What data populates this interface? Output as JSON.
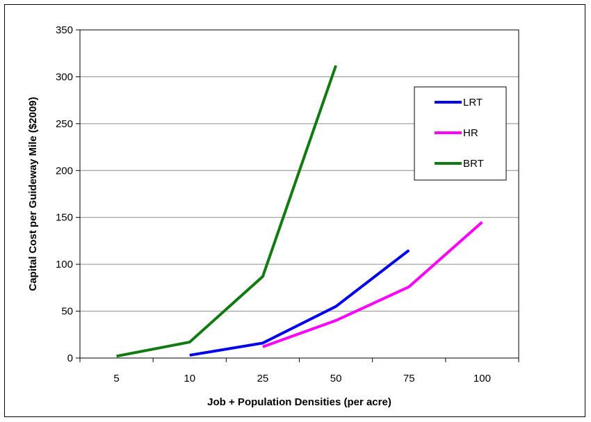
{
  "chart_data": {
    "type": "line",
    "title": "",
    "xlabel": "Job + Population Densities (per acre)",
    "ylabel": "Capital Cost per Guideway Mile ($2009)",
    "categories": [
      "5",
      "10",
      "25",
      "50",
      "75",
      "100"
    ],
    "ylim": [
      0,
      350
    ],
    "yticks": [
      0,
      50,
      100,
      150,
      200,
      250,
      300,
      350
    ],
    "grid": true,
    "legend_position": "top-right",
    "series": [
      {
        "name": "LRT",
        "color": "#0000ee",
        "x": [
          "10",
          "25",
          "50",
          "75"
        ],
        "values": [
          3,
          16,
          55,
          115
        ]
      },
      {
        "name": "HR",
        "color": "#ff00ff",
        "x": [
          "25",
          "50",
          "75",
          "100"
        ],
        "values": [
          12,
          40,
          76,
          145
        ]
      },
      {
        "name": "BRT",
        "color": "#117a11",
        "x": [
          "5",
          "10",
          "25",
          "50"
        ],
        "values": [
          2,
          17,
          87,
          312
        ]
      }
    ]
  }
}
